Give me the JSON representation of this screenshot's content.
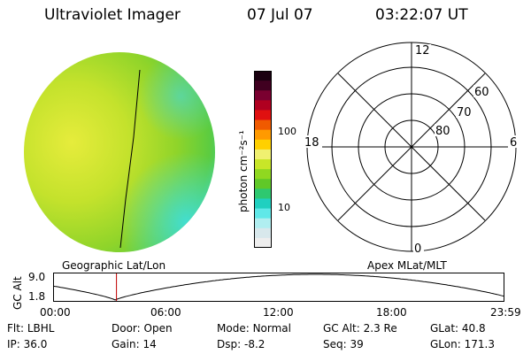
{
  "header": {
    "title": "Ultraviolet Imager",
    "date": "07 Jul 07",
    "time": "03:22:07 UT"
  },
  "colorbar": {
    "unit": "photon cm⁻²s⁻¹",
    "ticks": [
      "100",
      "10"
    ],
    "colors": [
      "#1a0010",
      "#400020",
      "#7a0030",
      "#b00020",
      "#e01010",
      "#f05a00",
      "#ff9a00",
      "#ffd000",
      "#f0f070",
      "#c8e628",
      "#90d820",
      "#60c828",
      "#2ec870",
      "#20d0c0",
      "#60e8e8",
      "#b0eef0",
      "#d8e8ec",
      "#eeeeee"
    ]
  },
  "image_labels": {
    "left": "Geographic Lat/Lon",
    "right": "Apex MLat/MLT"
  },
  "polar": {
    "clock": {
      "top": "12",
      "left": "18",
      "right": "6",
      "bottom": "0"
    },
    "lat_labels": [
      "60",
      "70",
      "80"
    ]
  },
  "altitude_plot": {
    "ylabel": "GC Alt",
    "yticks": [
      "9.0",
      "1.8"
    ],
    "xticks": [
      "00:00",
      "06:00",
      "12:00",
      "18:00",
      "23:59"
    ],
    "marker_time_hours": 3.37
  },
  "footer": {
    "row1": [
      {
        "key": "Flt:",
        "value": "LBHL"
      },
      {
        "key": "Door:",
        "value": "Open"
      },
      {
        "key": "Mode:",
        "value": "Normal"
      },
      {
        "key": "GC Alt:",
        "value": "2.3 Re"
      },
      {
        "key": "GLat:",
        "value": "40.8"
      }
    ],
    "row2": [
      {
        "key": "IP:",
        "value": "36.0"
      },
      {
        "key": "Gain:",
        "value": "14"
      },
      {
        "key": "Dsp:",
        "value": "-8.2"
      },
      {
        "key": "Seq:",
        "value": "39"
      },
      {
        "key": "GLon:",
        "value": "171.3"
      }
    ]
  }
}
